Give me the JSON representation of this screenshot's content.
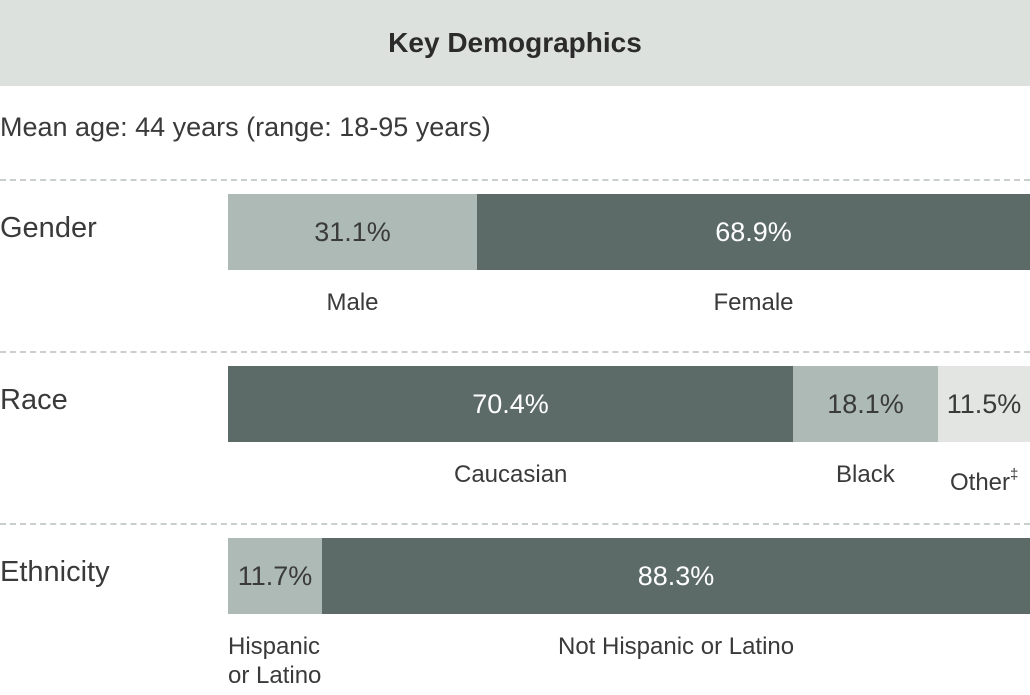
{
  "header": {
    "title": "Key Demographics"
  },
  "mean_age_text": "Mean age: 44 years (range: 18-95 years)",
  "colors": {
    "header_bg": "#dce1dd",
    "dark": "#5c6b67",
    "mid": "#adbab5",
    "light": "#e3e5e3",
    "text_dark": "#3a3a3a",
    "text_light": "#ffffff",
    "divider": "#c9cfcb"
  },
  "chart_data": {
    "type": "bar",
    "title": "Key Demographics",
    "orientation": "horizontal",
    "stacked": true,
    "unit": "%",
    "rows": [
      {
        "name": "Gender",
        "segments": [
          {
            "label": "Male",
            "value": 31.1,
            "display": "31.1%",
            "tone": "mid"
          },
          {
            "label": "Female",
            "value": 68.9,
            "display": "68.9%",
            "tone": "dark"
          }
        ]
      },
      {
        "name": "Race",
        "segments": [
          {
            "label": "Caucasian",
            "value": 70.4,
            "display": "70.4%",
            "tone": "dark"
          },
          {
            "label": "Black",
            "value": 18.1,
            "display": "18.1%",
            "tone": "mid"
          },
          {
            "label": "Other",
            "label_sup": "‡",
            "value": 11.5,
            "display": "11.5%",
            "tone": "light"
          }
        ]
      },
      {
        "name": "Ethnicity",
        "segments": [
          {
            "label": "Hispanic or Latino",
            "label_lines": [
              "Hispanic",
              "or Latino"
            ],
            "value": 11.7,
            "display": "11.7%",
            "tone": "mid"
          },
          {
            "label": "Not Hispanic or Latino",
            "value": 88.3,
            "display": "88.3%",
            "tone": "dark"
          }
        ]
      }
    ]
  }
}
